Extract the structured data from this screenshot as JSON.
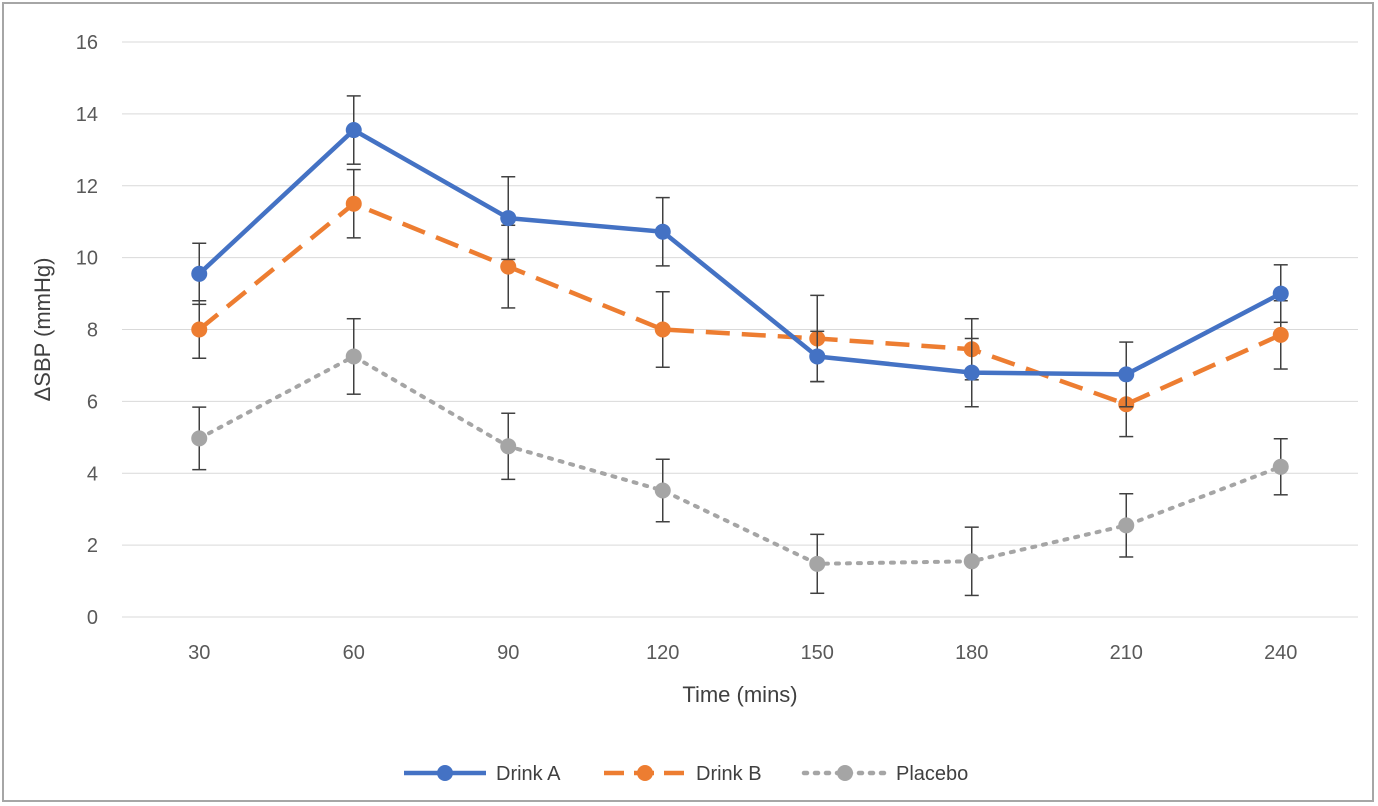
{
  "chart_data": {
    "type": "line",
    "title": "",
    "xlabel": "Time (mins)",
    "ylabel": "ΔSBP (mmHg)",
    "categories": [
      "30",
      "60",
      "90",
      "120",
      "150",
      "180",
      "210",
      "240"
    ],
    "ylim": [
      0,
      16
    ],
    "yticks": [
      0,
      2,
      4,
      6,
      8,
      10,
      12,
      14,
      16
    ],
    "grid": "horizontal",
    "legend": "bottom",
    "series": [
      {
        "name": "Drink A",
        "color": "#4472c4",
        "dash": "solid",
        "values": [
          9.55,
          13.55,
          11.1,
          10.72,
          7.25,
          6.8,
          6.75,
          9.0
        ],
        "errors": [
          0.85,
          0.95,
          1.15,
          0.95,
          0.7,
          0.95,
          0.9,
          0.8
        ]
      },
      {
        "name": "Drink B",
        "color": "#ed7d31",
        "dash": "dashed",
        "values": [
          8.0,
          11.5,
          9.75,
          8.0,
          7.75,
          7.45,
          5.92,
          7.85
        ],
        "errors": [
          0.8,
          0.95,
          1.15,
          1.05,
          1.2,
          0.85,
          0.9,
          0.95
        ]
      },
      {
        "name": "Placebo",
        "color": "#a5a5a5",
        "dash": "dotted",
        "values": [
          4.97,
          7.25,
          4.75,
          3.52,
          1.48,
          1.55,
          2.55,
          4.18
        ],
        "errors": [
          0.87,
          1.05,
          0.92,
          0.87,
          0.82,
          0.95,
          0.88,
          0.78
        ]
      }
    ]
  }
}
